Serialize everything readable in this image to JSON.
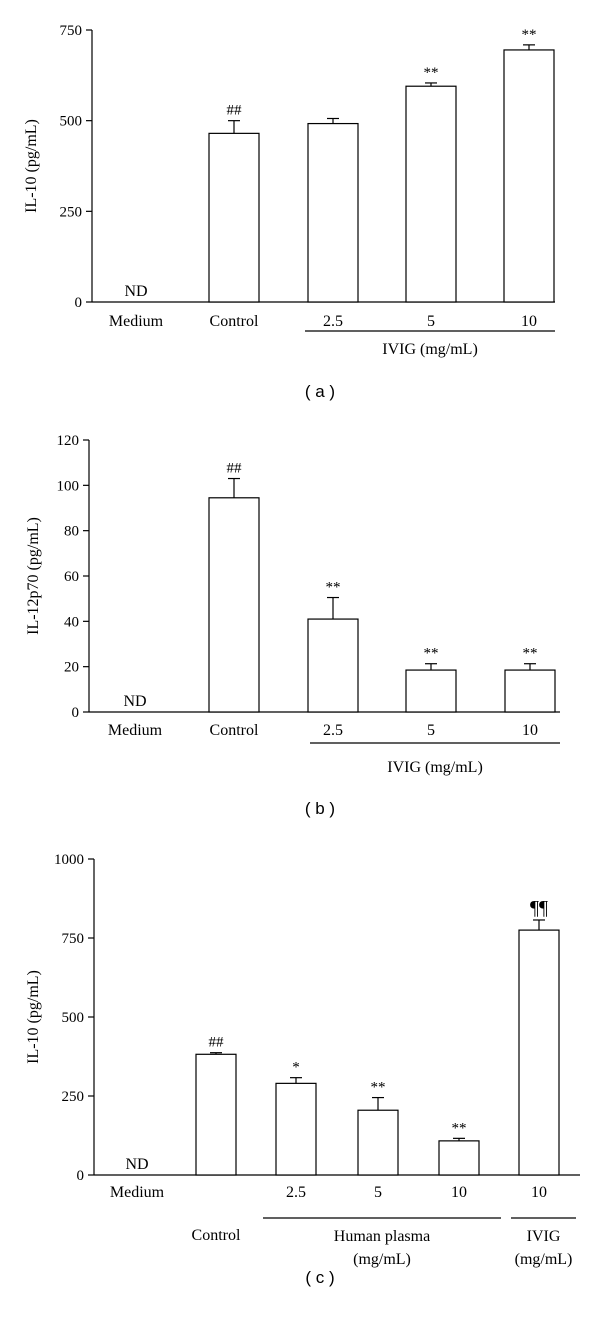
{
  "chart_data": [
    {
      "type": "bar",
      "panel_label": "( a )",
      "ylabel": "IL-10 (pg/mL)",
      "ylim": [
        0,
        750
      ],
      "yticks": [
        0,
        250,
        500,
        750
      ],
      "categories": [
        "Medium",
        "Control",
        "2.5",
        "5",
        "10"
      ],
      "values": [
        null,
        465,
        492,
        595,
        695
      ],
      "errors": [
        null,
        35,
        14,
        9,
        14
      ],
      "annotations": [
        "ND",
        "##",
        "",
        "**",
        "**"
      ],
      "groups": [
        {
          "label": "IVIG (mg/mL)",
          "from": 2,
          "to": 4
        }
      ]
    },
    {
      "type": "bar",
      "panel_label": "( b )",
      "ylabel": "IL-12p70 (pg/mL)",
      "ylim": [
        0,
        120
      ],
      "yticks": [
        0,
        20,
        40,
        60,
        80,
        100,
        120
      ],
      "categories": [
        "Medium",
        "Control",
        "2.5",
        "5",
        "10"
      ],
      "values": [
        null,
        94.5,
        41,
        18.5,
        18.5
      ],
      "errors": [
        null,
        8.5,
        9.5,
        2.8,
        2.8
      ],
      "annotations": [
        "ND",
        "##",
        "**",
        "**",
        "**"
      ],
      "groups": [
        {
          "label": "IVIG (mg/mL)",
          "from": 2,
          "to": 4
        }
      ]
    },
    {
      "type": "bar",
      "panel_label": "( c )",
      "ylabel": "IL-10 (pg/mL)",
      "ylim": [
        0,
        1000
      ],
      "yticks": [
        0,
        250,
        500,
        750,
        1000
      ],
      "categories": [
        "Medium",
        "Control",
        "2.5",
        "5",
        "10",
        "10"
      ],
      "values": [
        null,
        382,
        290,
        205,
        108,
        775
      ],
      "errors": [
        null,
        5,
        18,
        40,
        8,
        32
      ],
      "annotations": [
        "ND",
        "##",
        "*",
        "**",
        "**",
        "¶¶"
      ],
      "groups": [
        {
          "label": "Human plasma (mg/mL)",
          "label_lines": [
            "Human plasma",
            "(mg/mL)"
          ],
          "from": 2,
          "to": 4
        },
        {
          "label": "IVIG (mg/mL)",
          "label_lines": [
            "IVIG",
            "(mg/mL)"
          ],
          "from": 5,
          "to": 5
        }
      ]
    }
  ]
}
